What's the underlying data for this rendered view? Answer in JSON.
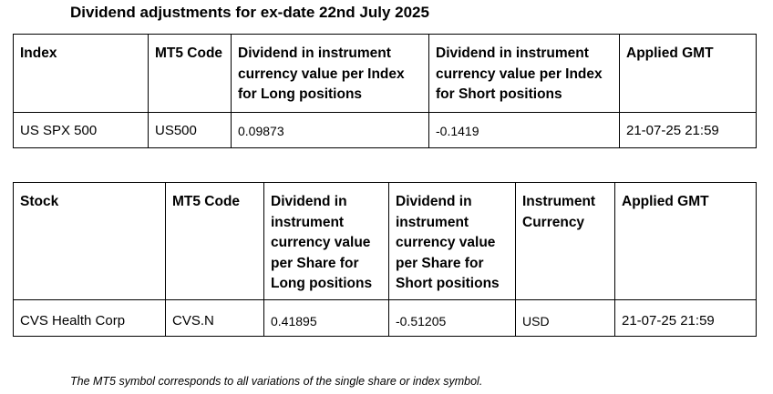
{
  "title": "Dividend adjustments for ex-date 22nd July 2025",
  "index_table": {
    "headers": [
      "Index",
      "MT5 Code",
      "Dividend in instrument currency value per Index for Long positions",
      "Dividend in instrument currency value per Index for Short positions",
      "Applied GMT"
    ],
    "rows": [
      [
        "US SPX 500",
        "US500",
        "0.09873",
        "-0.1419",
        "21-07-25 21:59"
      ]
    ]
  },
  "stock_table": {
    "headers": [
      "Stock",
      "MT5 Code",
      "Dividend in instrument currency value per Share for Long positions",
      "Dividend in instrument currency value per Share for Short positions",
      "Instrument Currency",
      "Applied GMT"
    ],
    "rows": [
      [
        "CVS Health Corp",
        "CVS.N",
        "0.41895",
        "-0.51205",
        "USD",
        "21-07-25 21:59"
      ]
    ]
  },
  "footnote": "The MT5 symbol corresponds to all variations of the single share or index symbol."
}
